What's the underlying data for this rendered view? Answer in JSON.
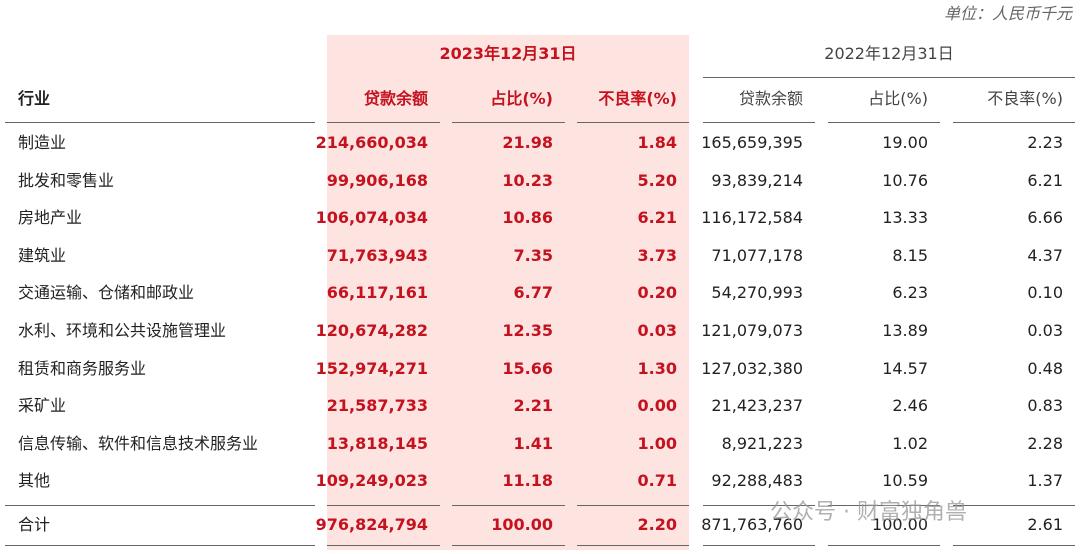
{
  "header": {
    "unit": "单位：人民币千元"
  },
  "table": {
    "group_headers": [
      "2023年12月31日",
      "2022年12月31日"
    ],
    "columns": [
      "行业",
      "贷款余额",
      "占比(%)",
      "不良率(%)",
      "贷款余额",
      "占比(%)",
      "不良率(%)"
    ],
    "rows": [
      [
        "制造业",
        "214,660,034",
        "21.98",
        "1.84",
        "165,659,395",
        "19.00",
        "2.23"
      ],
      [
        "批发和零售业",
        "99,906,168",
        "10.23",
        "5.20",
        "93,839,214",
        "10.76",
        "6.21"
      ],
      [
        "房地产业",
        "106,074,034",
        "10.86",
        "6.21",
        "116,172,584",
        "13.33",
        "6.66"
      ],
      [
        "建筑业",
        "71,763,943",
        "7.35",
        "3.73",
        "71,077,178",
        "8.15",
        "4.37"
      ],
      [
        "交通运输、仓储和邮政业",
        "66,117,161",
        "6.77",
        "0.20",
        "54,270,993",
        "6.23",
        "0.10"
      ],
      [
        "水利、环境和公共设施管理业",
        "120,674,282",
        "12.35",
        "0.03",
        "121,079,073",
        "13.89",
        "0.03"
      ],
      [
        "租赁和商务服务业",
        "152,974,271",
        "15.66",
        "1.30",
        "127,032,380",
        "14.57",
        "0.48"
      ],
      [
        "采矿业",
        "21,587,733",
        "2.21",
        "0.00",
        "21,423,237",
        "2.46",
        "0.83"
      ],
      [
        "信息传输、软件和信息技术服务业",
        "13,818,145",
        "1.41",
        "1.00",
        "8,921,223",
        "1.02",
        "2.28"
      ],
      [
        "其他",
        "109,249,023",
        "11.18",
        "0.71",
        "92,288,483",
        "10.59",
        "1.37"
      ]
    ],
    "total": [
      "合计",
      "976,824,794",
      "100.00",
      "2.20",
      "871,763,760",
      "100.00",
      "2.61"
    ]
  },
  "watermark": "公众号 · 财富独角兽"
}
